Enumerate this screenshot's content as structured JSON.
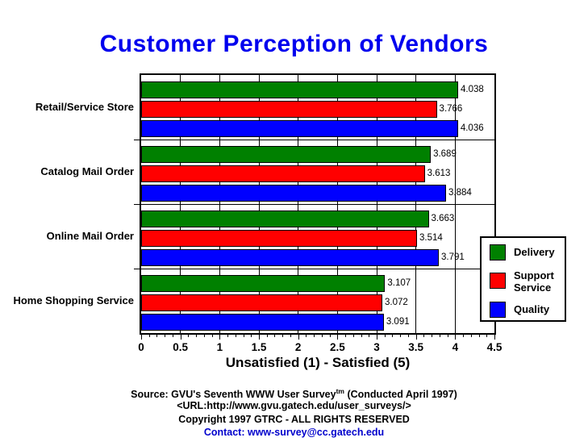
{
  "title": "Customer Perception of Vendors",
  "chart_data": {
    "type": "bar",
    "orientation": "horizontal",
    "title": "Customer Perception of Vendors",
    "xlabel": "Unsatisfied (1) - Satisfied (5)",
    "xlim": [
      0,
      4.5
    ],
    "xtick_labels": [
      "0",
      "0.5",
      "1",
      "1.5",
      "2",
      "2.5",
      "3",
      "3.5",
      "4",
      "4.5"
    ],
    "minor_tick_step": 0.1,
    "grid": true,
    "legend_position": "right-inside",
    "categories": [
      "Retail/Service Store",
      "Catalog Mail Order",
      "Online Mail Order",
      "Home Shopping Service"
    ],
    "series": [
      {
        "name": "Delivery",
        "color": "#008000",
        "values": [
          4.038,
          3.689,
          3.663,
          3.107
        ]
      },
      {
        "name": "Support Service",
        "color": "#ff0000",
        "values": [
          3.766,
          3.613,
          3.514,
          3.072
        ]
      },
      {
        "name": "Quality",
        "color": "#0000ff",
        "values": [
          4.036,
          3.884,
          3.791,
          3.091
        ]
      }
    ]
  },
  "footer": {
    "source_prefix": "Source: GVU's Seventh WWW User Survey",
    "source_superscript": "tm",
    "source_suffix": " (Conducted April 1997)",
    "url_line": "<URL:http://www.gvu.gatech.edu/user_surveys/>",
    "copyright_line": "Copyright 1997 GTRC - ALL RIGHTS RESERVED",
    "contact_line": "Contact: www-survey@cc.gatech.edu"
  },
  "colors": {
    "title": "#0000ee",
    "contact": "#0000cc",
    "axis": "#000000",
    "background": "#ffffff"
  }
}
